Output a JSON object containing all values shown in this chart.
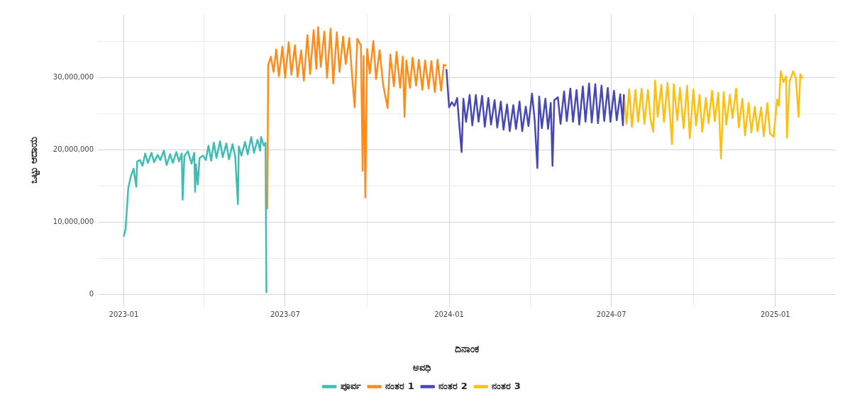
{
  "chart_data": {
    "type": "line",
    "xlabel": "ದಿನಾಂಕ",
    "ylabel": "ಒಟ್ಟು ಆದಾಯ",
    "legend_title": "ಅವಧಿ",
    "legend": "bottom",
    "grid": true,
    "marker": "none",
    "line_style": "solid",
    "xlim": [
      "2022-12-03",
      "2025-03-09"
    ],
    "xticks": [
      "2023-01",
      {
        "value": "2023-04",
        "label": null
      },
      "2023-07",
      {
        "value": "2023-10",
        "label": null
      },
      "2024-01",
      {
        "value": "2024-04",
        "label": null
      },
      "2024-07",
      {
        "value": "2024-10",
        "label": null
      },
      "2025-01"
    ],
    "ylim": [
      -1700000,
      38800000
    ],
    "yticks": [
      {
        "value": 0,
        "label": "0"
      },
      {
        "value": 5000000,
        "label": null
      },
      {
        "value": 10000000,
        "label": "10,000,000"
      },
      {
        "value": 15000000,
        "label": null
      },
      {
        "value": 20000000,
        "label": "20,000,000"
      },
      {
        "value": 25000000,
        "label": null
      },
      {
        "value": 30000000,
        "label": "30,000,000"
      },
      {
        "value": 35000000,
        "label": null
      }
    ],
    "series": [
      {
        "name": "ಪೂರ್ವ",
        "color": "#3dbdb5",
        "x": [
          "2023-01-01",
          "2023-01-03",
          "2023-01-06",
          "2023-01-09",
          "2023-01-12",
          "2023-01-15",
          "2023-01-16",
          "2023-01-19",
          "2023-01-22",
          "2023-01-25",
          "2023-01-28",
          "2023-02-01",
          "2023-02-04",
          "2023-02-08",
          "2023-02-11",
          "2023-02-15",
          "2023-02-18",
          "2023-02-22",
          "2023-02-25",
          "2023-03-01",
          "2023-03-04",
          "2023-03-07",
          "2023-03-08",
          "2023-03-10",
          "2023-03-14",
          "2023-03-18",
          "2023-03-21",
          "2023-03-22",
          "2023-03-23",
          "2023-03-25",
          "2023-03-27",
          "2023-03-31",
          "2023-04-03",
          "2023-04-06",
          "2023-04-09",
          "2023-04-12",
          "2023-04-15",
          "2023-04-19",
          "2023-04-22",
          "2023-04-26",
          "2023-04-29",
          "2023-05-03",
          "2023-05-06",
          "2023-05-09",
          "2023-05-10",
          "2023-05-13",
          "2023-05-17",
          "2023-05-20",
          "2023-05-24",
          "2023-05-27",
          "2023-05-31",
          "2023-06-03",
          "2023-06-04",
          "2023-06-07",
          "2023-06-09",
          "2023-06-10"
        ],
        "values": [
          8100000,
          9000000,
          14700000,
          16400000,
          17400000,
          14900000,
          18400000,
          18600000,
          17800000,
          19500000,
          18200000,
          19600000,
          18300000,
          19300000,
          18600000,
          19900000,
          17900000,
          19400000,
          18200000,
          19700000,
          18400000,
          19500000,
          13100000,
          19200000,
          19800000,
          18100000,
          19600000,
          14200000,
          18000000,
          15200000,
          18900000,
          19200000,
          18600000,
          20600000,
          18500000,
          21000000,
          18900000,
          21200000,
          19000000,
          20900000,
          18700000,
          20800000,
          19100000,
          12500000,
          20500000,
          19200000,
          21100000,
          19400000,
          21800000,
          19600000,
          21400000,
          19900000,
          21800000,
          20600000,
          21000000,
          300000
        ]
      },
      {
        "name": "ನಂತರ 1",
        "color": "#ff8c1a",
        "x": [
          "2023-06-11",
          "2023-06-12",
          "2023-06-15",
          "2023-06-18",
          "2023-06-21",
          "2023-06-24",
          "2023-06-28",
          "2023-07-01",
          "2023-07-05",
          "2023-07-08",
          "2023-07-12",
          "2023-07-15",
          "2023-07-19",
          "2023-07-22",
          "2023-07-26",
          "2023-07-29",
          "2023-08-02",
          "2023-08-05",
          "2023-08-07",
          "2023-08-10",
          "2023-08-14",
          "2023-08-17",
          "2023-08-21",
          "2023-08-24",
          "2023-08-28",
          "2023-08-31",
          "2023-09-04",
          "2023-09-07",
          "2023-09-11",
          "2023-09-14",
          "2023-09-17",
          "2023-09-20",
          "2023-09-24",
          "2023-09-26",
          "2023-09-27",
          "2023-09-29",
          "2023-10-01",
          "2023-10-04",
          "2023-10-08",
          "2023-10-11",
          "2023-10-15",
          "2023-10-19",
          "2023-10-24",
          "2023-10-27",
          "2023-10-31",
          "2023-11-03",
          "2023-11-07",
          "2023-11-10",
          "2023-11-12",
          "2023-11-14",
          "2023-11-18",
          "2023-11-21",
          "2023-11-25",
          "2023-11-28",
          "2023-12-02",
          "2023-12-05",
          "2023-12-09",
          "2023-12-12",
          "2023-12-16",
          "2023-12-19",
          "2023-12-23",
          "2023-12-26",
          "2023-12-28"
        ],
        "values": [
          11900000,
          31800000,
          32900000,
          30800000,
          33900000,
          30200000,
          34300000,
          30000000,
          34900000,
          30400000,
          34500000,
          30100000,
          33800000,
          29600000,
          35900000,
          30500000,
          36600000,
          31200000,
          37000000,
          31500000,
          36400000,
          30000000,
          36800000,
          29200000,
          36300000,
          30800000,
          35700000,
          31900000,
          35500000,
          30500000,
          25900000,
          35400000,
          34500000,
          17100000,
          33000000,
          13400000,
          34000000,
          30600000,
          35100000,
          29800000,
          33800000,
          29000000,
          25800000,
          33200000,
          28800000,
          33600000,
          28600000,
          32900000,
          24600000,
          32400000,
          28600000,
          32800000,
          28900000,
          32500000,
          28300000,
          32400000,
          28500000,
          32300000,
          28000000,
          32500000,
          28200000,
          31800000,
          31700000
        ]
      },
      {
        "name": "ನಂತರ 2",
        "color": "#4848b5",
        "x": [
          "2023-12-29",
          "2024-01-01",
          "2024-01-04",
          "2024-01-07",
          "2024-01-10",
          "2024-01-13",
          "2024-01-15",
          "2024-01-17",
          "2024-01-20",
          "2024-01-24",
          "2024-01-27",
          "2024-01-31",
          "2024-02-03",
          "2024-02-07",
          "2024-02-10",
          "2024-02-14",
          "2024-02-17",
          "2024-02-21",
          "2024-02-24",
          "2024-02-28",
          "2024-03-02",
          "2024-03-06",
          "2024-03-09",
          "2024-03-13",
          "2024-03-16",
          "2024-03-20",
          "2024-03-23",
          "2024-03-27",
          "2024-03-30",
          "2024-04-03",
          "2024-04-06",
          "2024-04-09",
          "2024-04-11",
          "2024-04-14",
          "2024-04-18",
          "2024-04-21",
          "2024-04-24",
          "2024-04-26",
          "2024-04-28",
          "2024-05-02",
          "2024-05-05",
          "2024-05-09",
          "2024-05-12",
          "2024-05-16",
          "2024-05-19",
          "2024-05-23",
          "2024-05-26",
          "2024-05-30",
          "2024-06-02",
          "2024-06-06",
          "2024-06-09",
          "2024-06-13",
          "2024-06-16",
          "2024-06-20",
          "2024-06-23",
          "2024-06-27",
          "2024-06-30",
          "2024-07-04",
          "2024-07-07",
          "2024-07-11",
          "2024-07-14",
          "2024-07-15"
        ],
        "values": [
          31100000,
          25900000,
          26600000,
          26100000,
          27200000,
          22600000,
          19700000,
          27100000,
          23900000,
          27600000,
          23400000,
          27600000,
          23900000,
          27500000,
          23200000,
          27200000,
          23500000,
          26900000,
          23100000,
          26700000,
          22800000,
          26300000,
          22600000,
          26200000,
          22900000,
          26700000,
          22600000,
          26000000,
          23300000,
          27800000,
          24100000,
          17500000,
          27400000,
          23000000,
          27100000,
          22900000,
          26500000,
          17800000,
          26900000,
          27300000,
          23600000,
          28100000,
          24000000,
          28500000,
          23900000,
          28300000,
          23500000,
          28800000,
          23900000,
          29200000,
          23800000,
          29100000,
          23700000,
          28900000,
          24000000,
          28600000,
          23900000,
          28200000,
          24100000,
          27700000,
          23400000,
          27600000
        ]
      },
      {
        "name": "ನಂತರ 3",
        "color": "#ffbf0f",
        "x": [
          "2024-07-15",
          "2024-07-18",
          "2024-07-21",
          "2024-07-24",
          "2024-07-28",
          "2024-07-31",
          "2024-08-04",
          "2024-08-07",
          "2024-08-11",
          "2024-08-14",
          "2024-08-17",
          "2024-08-19",
          "2024-08-22",
          "2024-08-26",
          "2024-08-29",
          "2024-09-02",
          "2024-09-05",
          "2024-09-07",
          "2024-09-09",
          "2024-09-13",
          "2024-09-16",
          "2024-09-20",
          "2024-09-24",
          "2024-09-27",
          "2024-10-01",
          "2024-10-04",
          "2024-10-08",
          "2024-10-11",
          "2024-10-15",
          "2024-10-18",
          "2024-10-22",
          "2024-10-25",
          "2024-10-29",
          "2024-11-01",
          "2024-11-04",
          "2024-11-07",
          "2024-11-11",
          "2024-11-14",
          "2024-11-18",
          "2024-11-21",
          "2024-11-25",
          "2024-11-28",
          "2024-12-02",
          "2024-12-05",
          "2024-12-09",
          "2024-12-12",
          "2024-12-16",
          "2024-12-19",
          "2024-12-23",
          "2024-12-26",
          "2024-12-30",
          "2025-01-03",
          "2025-01-05",
          "2025-01-07",
          "2025-01-10",
          "2025-01-13",
          "2025-01-14",
          "2025-01-17",
          "2025-01-21",
          "2025-01-24",
          "2025-01-27",
          "2025-01-29",
          "2025-01-31"
        ],
        "values": [
          27600000,
          23600000,
          28400000,
          23200000,
          28300000,
          23900000,
          28500000,
          23600000,
          28300000,
          24200000,
          22500000,
          29600000,
          24600000,
          29000000,
          23900000,
          29300000,
          24400000,
          20800000,
          29100000,
          24100000,
          28600000,
          23000000,
          28900000,
          21600000,
          28400000,
          23400000,
          27600000,
          22500000,
          27200000,
          23700000,
          28200000,
          24000000,
          27900000,
          18800000,
          28000000,
          23500000,
          27600000,
          24400000,
          28500000,
          23100000,
          27100000,
          22000000,
          26500000,
          22400000,
          26000000,
          22600000,
          25900000,
          21900000,
          26500000,
          22300000,
          21800000,
          27000000,
          26100000,
          30900000,
          29400000,
          30200000,
          21700000,
          29500000,
          30900000,
          30000000,
          24600000,
          30500000,
          30000000
        ]
      }
    ]
  }
}
